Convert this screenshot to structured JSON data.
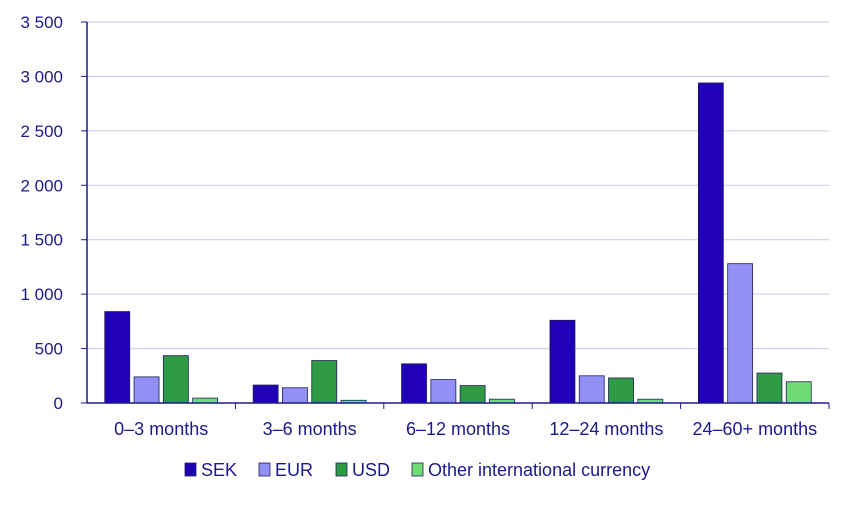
{
  "chart_data": {
    "type": "bar",
    "title": "",
    "xlabel": "",
    "ylabel": "",
    "categories": [
      "0–3 months",
      "3–6 months",
      "6–12 months",
      "12–24 months",
      "24–60+ months"
    ],
    "ylim": [
      0,
      3500
    ],
    "yticks": [
      0,
      500,
      1000,
      1500,
      2000,
      2500,
      3000,
      3500
    ],
    "ytick_labels": [
      "0",
      "500",
      "1 000",
      "1 500",
      "2 000",
      "2 500",
      "3 000",
      "3 500"
    ],
    "grid": true,
    "legend_position": "bottom",
    "series": [
      {
        "name": "SEK",
        "color": "#2200b8",
        "values": [
          840,
          165,
          360,
          760,
          2940
        ]
      },
      {
        "name": "EUR",
        "color": "#9191f5",
        "values": [
          240,
          140,
          215,
          250,
          1280
        ]
      },
      {
        "name": "USD",
        "color": "#2e9a44",
        "values": [
          435,
          390,
          160,
          230,
          275
        ]
      },
      {
        "name": "Other international currency",
        "color": "#6fdc78",
        "values": [
          45,
          25,
          35,
          35,
          195
        ]
      }
    ]
  }
}
